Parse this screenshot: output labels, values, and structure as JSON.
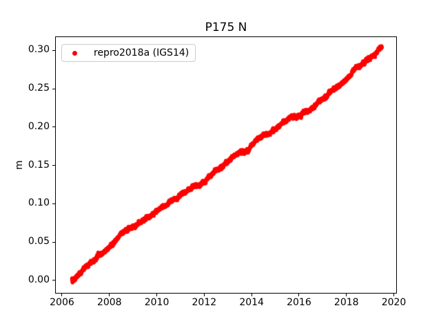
{
  "figure": {
    "background": "#ffffff",
    "axes_edge_color": "#000000"
  },
  "chart_data": {
    "type": "scatter",
    "title": "P175 N",
    "xlabel": "",
    "ylabel": "m",
    "grid": false,
    "xlim": [
      2005.71,
      2020.13
    ],
    "ylim": [
      -0.0173,
      0.3184
    ],
    "xticks": [
      {
        "v": 2006,
        "label": "2006"
      },
      {
        "v": 2008,
        "label": "2008"
      },
      {
        "v": 2010,
        "label": "2010"
      },
      {
        "v": 2012,
        "label": "2012"
      },
      {
        "v": 2014,
        "label": "2014"
      },
      {
        "v": 2016,
        "label": "2016"
      },
      {
        "v": 2018,
        "label": "2018"
      },
      {
        "v": 2020,
        "label": "2020"
      }
    ],
    "yticks": [
      {
        "v": 0.0,
        "label": "0.00"
      },
      {
        "v": 0.05,
        "label": "0.05"
      },
      {
        "v": 0.1,
        "label": "0.10"
      },
      {
        "v": 0.15,
        "label": "0.15"
      },
      {
        "v": 0.2,
        "label": "0.20"
      },
      {
        "v": 0.25,
        "label": "0.25"
      },
      {
        "v": 0.3,
        "label": "0.30"
      }
    ],
    "legend": {
      "position": "upper left",
      "edge_color": "#cccccc",
      "entries": [
        {
          "label": "repro2018a (IGS14)",
          "color": "#ff0000",
          "marker": "dot"
        }
      ]
    },
    "series": [
      {
        "name": "repro2018a (IGS14)",
        "color": "#ff0000",
        "marker": "dot",
        "marker_radius_px": 2.7,
        "points_per_year": 180,
        "noise_sigma_m": 0.0011,
        "walk_step_m": 0.0003,
        "walk_decay": 0.99,
        "seasonal_amp_m": 0.0008,
        "seasonal_phase_yr": 0.15,
        "seed": 42,
        "trend_rate_m_per_yr": 0.0233,
        "anchors": [
          [
            2006.42,
            0.002
          ],
          [
            2006.5,
            -0.001
          ],
          [
            2006.65,
            0.004
          ],
          [
            2007.0,
            0.016
          ],
          [
            2007.3,
            0.024
          ],
          [
            2007.55,
            0.031
          ],
          [
            2008.0,
            0.043
          ],
          [
            2008.5,
            0.056
          ],
          [
            2009.0,
            0.068
          ],
          [
            2009.5,
            0.077
          ],
          [
            2010.0,
            0.088
          ],
          [
            2010.5,
            0.1
          ],
          [
            2011.0,
            0.112
          ],
          [
            2011.5,
            0.122
          ],
          [
            2012.0,
            0.131
          ],
          [
            2012.5,
            0.143
          ],
          [
            2013.0,
            0.155
          ],
          [
            2013.5,
            0.166
          ],
          [
            2014.0,
            0.177
          ],
          [
            2014.5,
            0.187
          ],
          [
            2015.0,
            0.197
          ],
          [
            2015.5,
            0.207
          ],
          [
            2016.0,
            0.216
          ],
          [
            2016.4,
            0.221
          ],
          [
            2017.0,
            0.237
          ],
          [
            2017.5,
            0.249
          ],
          [
            2018.0,
            0.262
          ],
          [
            2018.5,
            0.276
          ],
          [
            2019.0,
            0.287
          ],
          [
            2019.3,
            0.297
          ],
          [
            2019.5,
            0.304
          ]
        ]
      }
    ]
  }
}
